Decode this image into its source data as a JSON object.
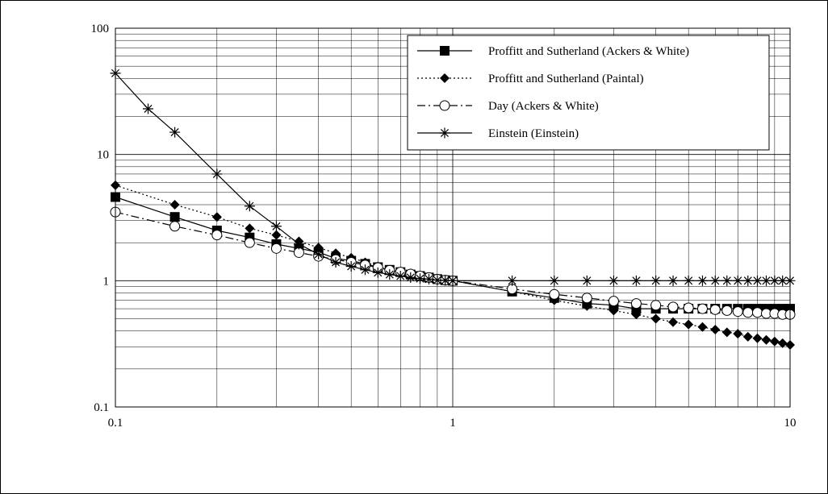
{
  "chart_data": {
    "type": "line",
    "xscale": "log",
    "yscale": "log",
    "xlim": [
      0.1,
      10
    ],
    "ylim": [
      0.1,
      100
    ],
    "grid": true,
    "legend_position": "top-right",
    "xticks": [
      "0.1",
      "1",
      "10"
    ],
    "yticks": [
      "0.1",
      "1",
      "10",
      "100"
    ],
    "series": [
      {
        "name": "Proffitt and Sutherland (Ackers & White)",
        "line": "solid",
        "marker": "square",
        "points": [
          [
            0.1,
            4.6
          ],
          [
            0.15,
            3.2
          ],
          [
            0.2,
            2.5
          ],
          [
            0.25,
            2.2
          ],
          [
            0.3,
            1.95
          ],
          [
            0.35,
            1.8
          ],
          [
            0.4,
            1.68
          ],
          [
            0.45,
            1.5
          ],
          [
            0.5,
            1.44
          ],
          [
            0.55,
            1.36
          ],
          [
            0.6,
            1.28
          ],
          [
            0.65,
            1.22
          ],
          [
            0.7,
            1.17
          ],
          [
            0.75,
            1.12
          ],
          [
            0.8,
            1.09
          ],
          [
            0.85,
            1.06
          ],
          [
            0.9,
            1.03
          ],
          [
            0.95,
            1.01
          ],
          [
            1,
            1
          ],
          [
            1.5,
            0.82
          ],
          [
            2,
            0.73
          ],
          [
            2.5,
            0.66
          ],
          [
            3,
            0.64
          ],
          [
            3.5,
            0.6
          ],
          [
            4,
            0.6
          ],
          [
            4.5,
            0.6
          ],
          [
            5,
            0.6
          ],
          [
            5.5,
            0.6
          ],
          [
            6,
            0.6
          ],
          [
            6.5,
            0.6
          ],
          [
            7,
            0.6
          ],
          [
            7.5,
            0.6
          ],
          [
            8,
            0.6
          ],
          [
            8.5,
            0.6
          ],
          [
            9,
            0.6
          ],
          [
            9.5,
            0.6
          ],
          [
            10,
            0.6
          ]
        ]
      },
      {
        "name": "Proffitt and Sutherland (Paintal)",
        "line": "dotted",
        "marker": "diamond",
        "points": [
          [
            0.1,
            5.7
          ],
          [
            0.15,
            4.0
          ],
          [
            0.2,
            3.2
          ],
          [
            0.25,
            2.6
          ],
          [
            0.3,
            2.3
          ],
          [
            0.35,
            2.05
          ],
          [
            0.4,
            1.83
          ],
          [
            0.45,
            1.65
          ],
          [
            0.5,
            1.52
          ],
          [
            0.55,
            1.4
          ],
          [
            0.6,
            1.3
          ],
          [
            0.65,
            1.22
          ],
          [
            0.7,
            1.16
          ],
          [
            0.75,
            1.11
          ],
          [
            0.8,
            1.08
          ],
          [
            0.85,
            1.05
          ],
          [
            0.9,
            1.02
          ],
          [
            0.95,
            1.01
          ],
          [
            1,
            1
          ],
          [
            1.5,
            0.82
          ],
          [
            2,
            0.7
          ],
          [
            2.5,
            0.63
          ],
          [
            3,
            0.58
          ],
          [
            3.5,
            0.54
          ],
          [
            4,
            0.5
          ],
          [
            4.5,
            0.47
          ],
          [
            5,
            0.45
          ],
          [
            5.5,
            0.43
          ],
          [
            6,
            0.41
          ],
          [
            6.5,
            0.39
          ],
          [
            7,
            0.38
          ],
          [
            7.5,
            0.36
          ],
          [
            8,
            0.35
          ],
          [
            8.5,
            0.34
          ],
          [
            9,
            0.33
          ],
          [
            9.5,
            0.32
          ],
          [
            10,
            0.31
          ]
        ]
      },
      {
        "name": "Day (Ackers & White)",
        "line": "dash-dot",
        "marker": "circle-open",
        "points": [
          [
            0.1,
            3.5
          ],
          [
            0.15,
            2.7
          ],
          [
            0.2,
            2.3
          ],
          [
            0.25,
            2.0
          ],
          [
            0.3,
            1.8
          ],
          [
            0.35,
            1.67
          ],
          [
            0.4,
            1.56
          ],
          [
            0.45,
            1.47
          ],
          [
            0.5,
            1.4
          ],
          [
            0.55,
            1.33
          ],
          [
            0.6,
            1.27
          ],
          [
            0.65,
            1.21
          ],
          [
            0.7,
            1.17
          ],
          [
            0.75,
            1.13
          ],
          [
            0.8,
            1.09
          ],
          [
            0.85,
            1.06
          ],
          [
            0.9,
            1.03
          ],
          [
            0.95,
            1.01
          ],
          [
            1,
            1
          ],
          [
            1.5,
            0.86
          ],
          [
            2,
            0.78
          ],
          [
            2.5,
            0.73
          ],
          [
            3,
            0.69
          ],
          [
            3.5,
            0.66
          ],
          [
            4,
            0.64
          ],
          [
            4.5,
            0.62
          ],
          [
            5,
            0.61
          ],
          [
            5.5,
            0.6
          ],
          [
            6,
            0.59
          ],
          [
            6.5,
            0.58
          ],
          [
            7,
            0.57
          ],
          [
            7.5,
            0.56
          ],
          [
            8,
            0.56
          ],
          [
            8.5,
            0.55
          ],
          [
            9,
            0.55
          ],
          [
            9.5,
            0.54
          ],
          [
            10,
            0.54
          ]
        ]
      },
      {
        "name": "Einstein (Einstein)",
        "line": "solid",
        "marker": "asterisk",
        "points": [
          [
            0.1,
            44
          ],
          [
            0.125,
            23
          ],
          [
            0.15,
            15
          ],
          [
            0.2,
            7
          ],
          [
            0.25,
            3.9
          ],
          [
            0.3,
            2.7
          ],
          [
            0.35,
            1.95
          ],
          [
            0.4,
            1.62
          ],
          [
            0.45,
            1.4
          ],
          [
            0.5,
            1.3
          ],
          [
            0.55,
            1.22
          ],
          [
            0.6,
            1.16
          ],
          [
            0.65,
            1.12
          ],
          [
            0.7,
            1.09
          ],
          [
            0.75,
            1.06
          ],
          [
            0.8,
            1.04
          ],
          [
            0.85,
            1.03
          ],
          [
            0.9,
            1.01
          ],
          [
            0.95,
            1.005
          ],
          [
            1,
            1
          ],
          [
            1.5,
            1
          ],
          [
            2,
            1
          ],
          [
            2.5,
            1
          ],
          [
            3,
            1
          ],
          [
            3.5,
            1
          ],
          [
            4,
            1
          ],
          [
            4.5,
            1
          ],
          [
            5,
            1
          ],
          [
            5.5,
            1
          ],
          [
            6,
            1
          ],
          [
            6.5,
            1
          ],
          [
            7,
            1
          ],
          [
            7.5,
            1
          ],
          [
            8,
            1
          ],
          [
            8.5,
            1
          ],
          [
            9,
            1
          ],
          [
            9.5,
            1
          ],
          [
            10,
            1
          ]
        ]
      }
    ]
  }
}
